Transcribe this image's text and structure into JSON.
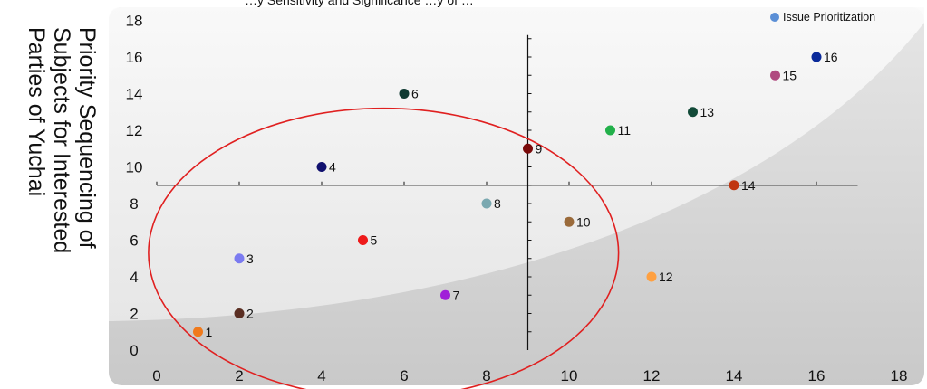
{
  "chart_data": {
    "type": "scatter",
    "title": "…y Sensitivity and Significance …y of …",
    "xlabel": "",
    "ylabel_lines": [
      "Priority Sequencing of",
      "Subjects for Interested",
      "Parties of Yuchai"
    ],
    "xlim": [
      0,
      18
    ],
    "ylim": [
      0,
      18
    ],
    "x_ticks": [
      0,
      2,
      4,
      6,
      8,
      10,
      12,
      14,
      16,
      18
    ],
    "y_ticks": [
      0,
      2,
      4,
      6,
      8,
      10,
      12,
      14,
      16,
      18
    ],
    "grid": false,
    "legend": {
      "position": "top-right",
      "entries": [
        "Issue Prioritization"
      ],
      "color": "#5b8fd6"
    },
    "series": [
      {
        "name": "Issue Prioritization",
        "points": [
          {
            "label": "1",
            "x": 1,
            "y": 1,
            "color": "#f07a1c"
          },
          {
            "label": "2",
            "x": 2,
            "y": 2,
            "color": "#5a2e22"
          },
          {
            "label": "3",
            "x": 2,
            "y": 5,
            "color": "#7b7bf0"
          },
          {
            "label": "4",
            "x": 4,
            "y": 10,
            "color": "#10106e"
          },
          {
            "label": "5",
            "x": 5,
            "y": 6,
            "color": "#ee1a1a"
          },
          {
            "label": "6",
            "x": 6,
            "y": 14,
            "color": "#0f3a32"
          },
          {
            "label": "7",
            "x": 7,
            "y": 3,
            "color": "#a020d8"
          },
          {
            "label": "8",
            "x": 8,
            "y": 8,
            "color": "#7aa8b0"
          },
          {
            "label": "9",
            "x": 9,
            "y": 11,
            "color": "#7a0a0a"
          },
          {
            "label": "10",
            "x": 10,
            "y": 7,
            "color": "#9a6a3a"
          },
          {
            "label": "11",
            "x": 11,
            "y": 12,
            "color": "#22b04a"
          },
          {
            "label": "12",
            "x": 12,
            "y": 4,
            "color": "#ffa040"
          },
          {
            "label": "13",
            "x": 13,
            "y": 13,
            "color": "#124a38"
          },
          {
            "label": "14",
            "x": 14,
            "y": 9,
            "color": "#c0350f"
          },
          {
            "label": "15",
            "x": 15,
            "y": 15,
            "color": "#b04a80"
          },
          {
            "label": "16",
            "x": 16,
            "y": 16,
            "color": "#0a2a9a"
          }
        ]
      }
    ],
    "quadrant_axes": {
      "vertical_x": 9,
      "horizontal_y": 9
    },
    "annotations": [
      {
        "type": "ellipse",
        "color": "#e02020",
        "center": [
          5.5,
          5.3
        ],
        "radii": [
          5.7,
          7.9
        ]
      }
    ]
  }
}
